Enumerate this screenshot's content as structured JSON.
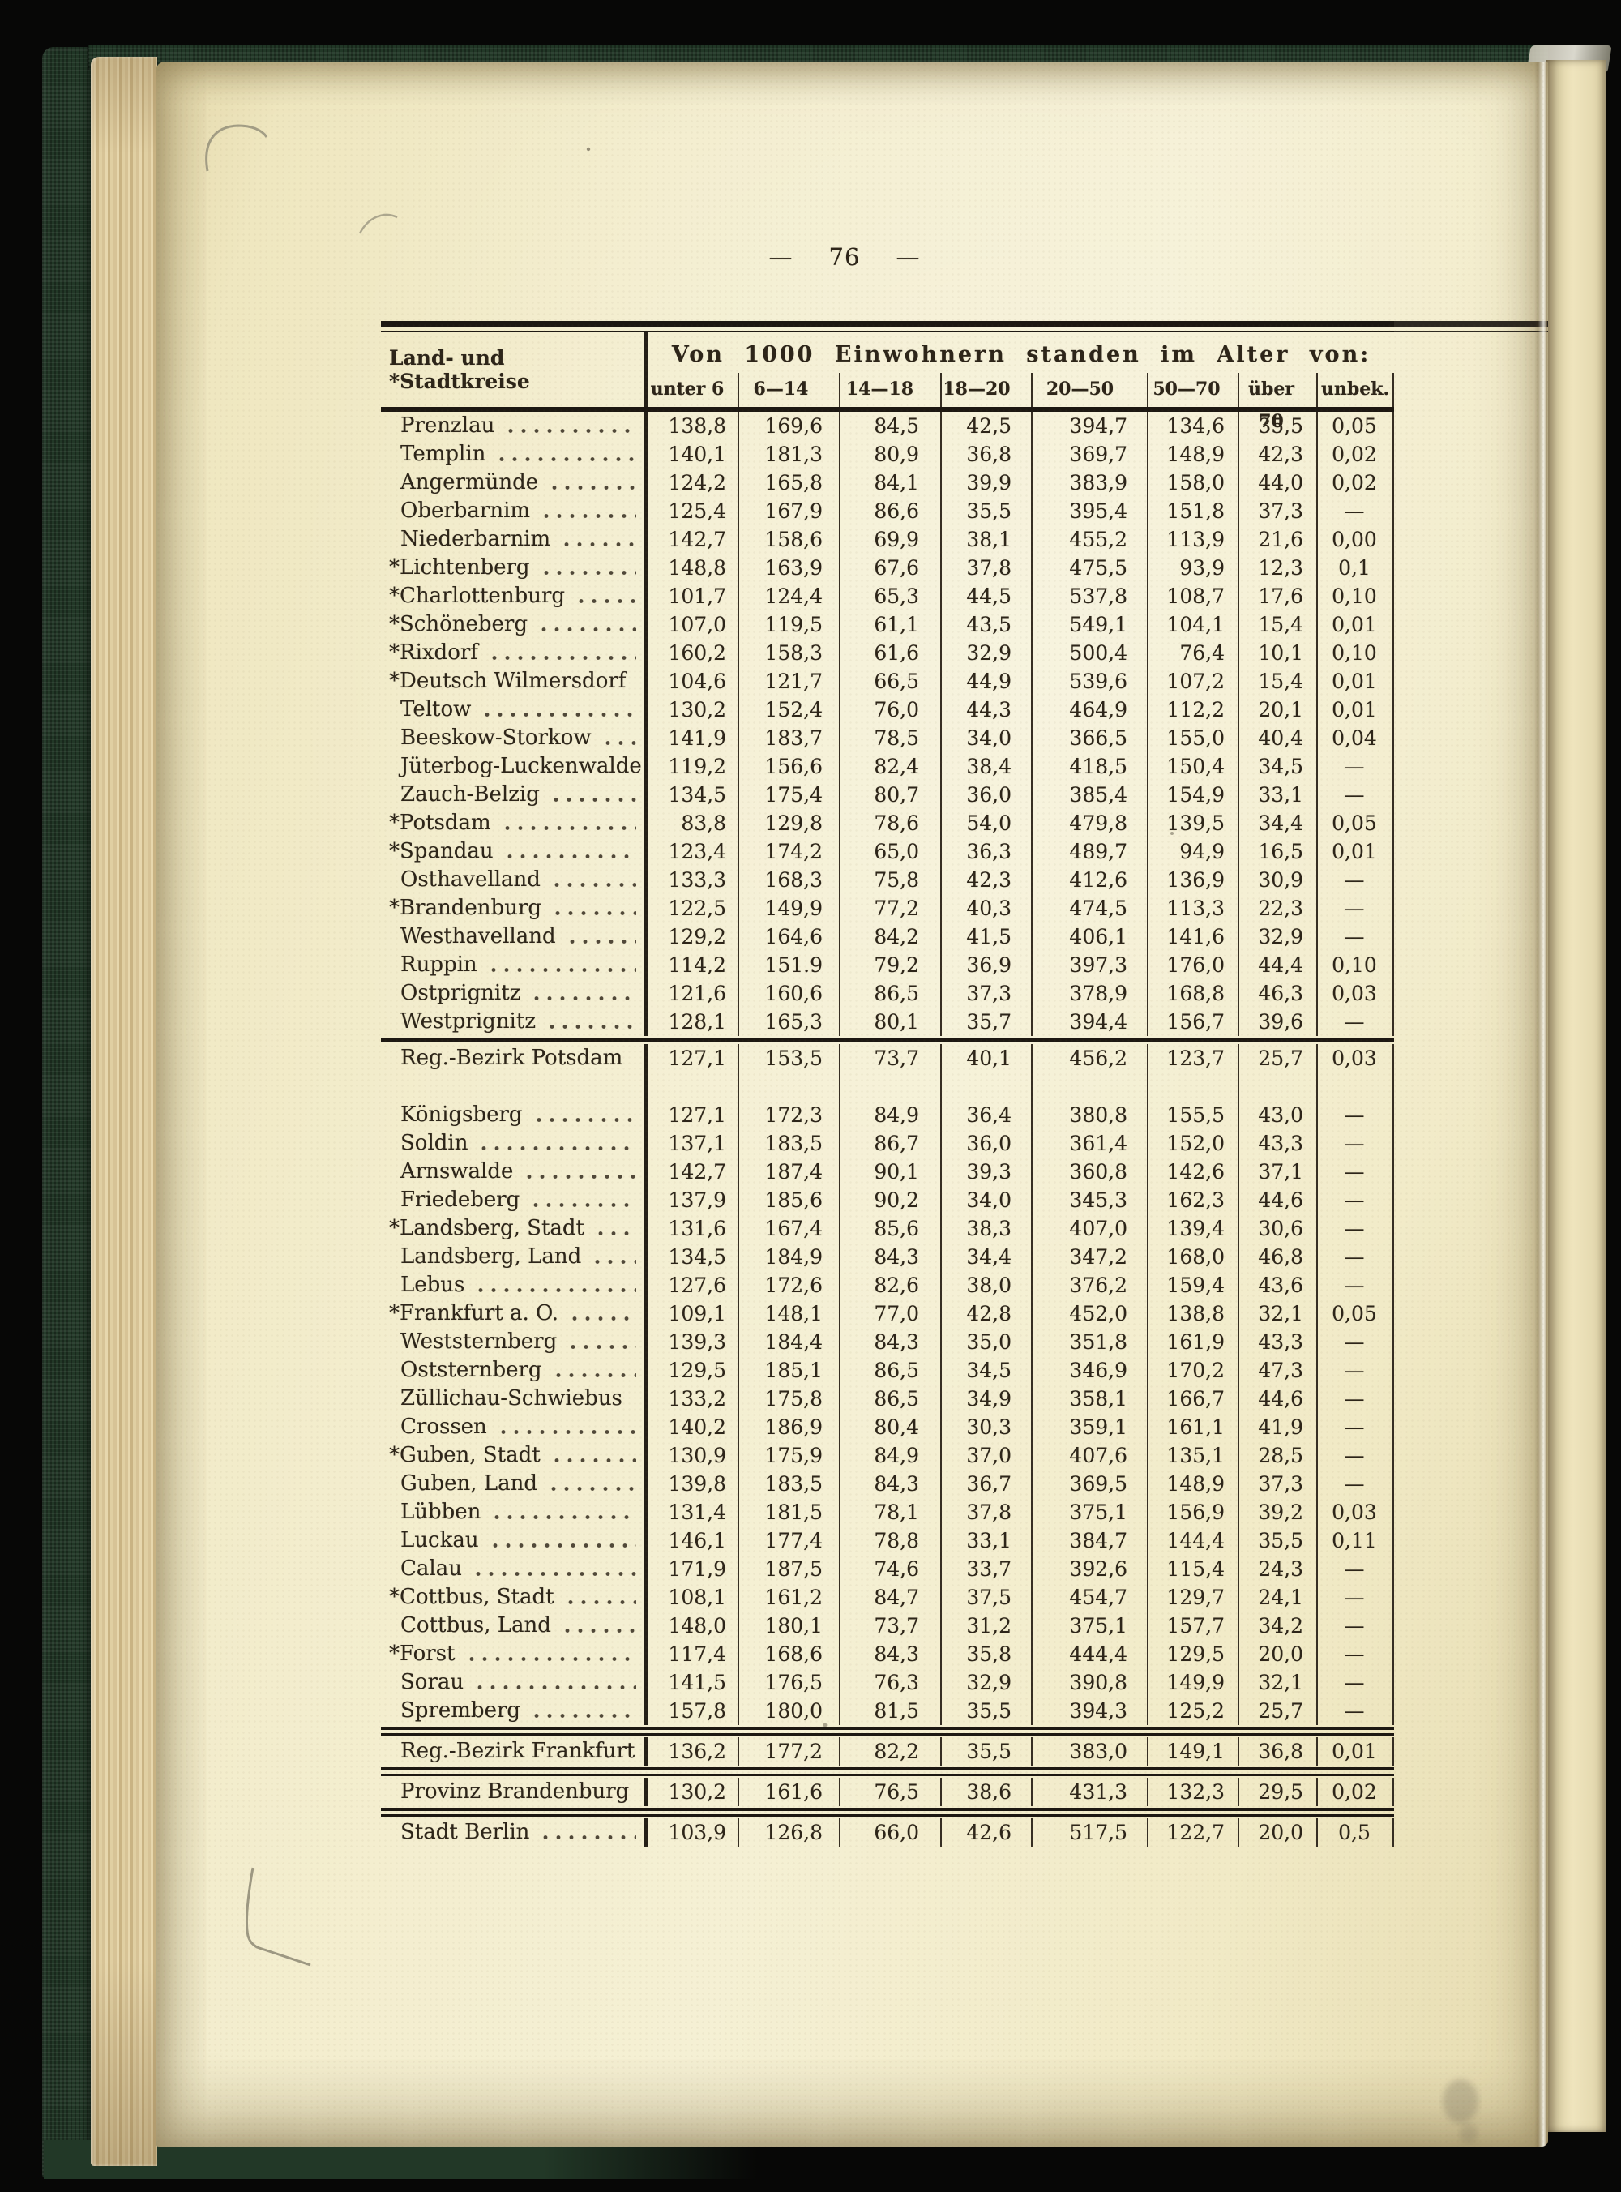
{
  "document": {
    "page_number": "76",
    "flanking_dash": "—"
  },
  "colors": {
    "paper": "#f2ebc8",
    "book_cover_green": "#223827",
    "background_black": "#070706",
    "ink": "#2d2519"
  },
  "table": {
    "name_column_header": "Land- und *Stadtkreise",
    "span_header": "Von 1000 Einwohnern standen im Alter von:",
    "age_columns": [
      "unter 6",
      "6—14",
      "14—18",
      "18—20",
      "20—50",
      "50—70",
      "über 70",
      "unbek."
    ],
    "rows": [
      {
        "name": "Prenzlau",
        "kind": "data",
        "values": [
          "138,8",
          "169,6",
          "84,5",
          "42,5",
          "394,7",
          "134,6",
          "35,5",
          "0,05"
        ]
      },
      {
        "name": "Templin",
        "kind": "data",
        "values": [
          "140,1",
          "181,3",
          "80,9",
          "36,8",
          "369,7",
          "148,9",
          "42,3",
          "0,02"
        ]
      },
      {
        "name": "Angermünde",
        "kind": "data",
        "values": [
          "124,2",
          "165,8",
          "84,1",
          "39,9",
          "383,9",
          "158,0",
          "44,0",
          "0,02"
        ]
      },
      {
        "name": "Oberbarnim",
        "kind": "data",
        "values": [
          "125,4",
          "167,9",
          "86,6",
          "35,5",
          "395,4",
          "151,8",
          "37,3",
          "—"
        ]
      },
      {
        "name": "Niederbarnim",
        "kind": "data",
        "values": [
          "142,7",
          "158,6",
          "69,9",
          "38,1",
          "455,2",
          "113,9",
          "21,6",
          "0,00"
        ]
      },
      {
        "name": "*Lichtenberg",
        "kind": "data",
        "values": [
          "148,8",
          "163,9",
          "67,6",
          "37,8",
          "475,5",
          "93,9",
          "12,3",
          "0,1"
        ]
      },
      {
        "name": "*Charlottenburg",
        "kind": "data",
        "values": [
          "101,7",
          "124,4",
          "65,3",
          "44,5",
          "537,8",
          "108,7",
          "17,6",
          "0,10"
        ]
      },
      {
        "name": "*Schöneberg",
        "kind": "data",
        "values": [
          "107,0",
          "119,5",
          "61,1",
          "43,5",
          "549,1",
          "104,1",
          "15,4",
          "0,01"
        ]
      },
      {
        "name": "*Rixdorf",
        "kind": "data",
        "values": [
          "160,2",
          "158,3",
          "61,6",
          "32,9",
          "500,4",
          "76,4",
          "10,1",
          "0,10"
        ]
      },
      {
        "name": "*Deutsch Wilmersdorf",
        "kind": "data",
        "values": [
          "104,6",
          "121,7",
          "66,5",
          "44,9",
          "539,6",
          "107,2",
          "15,4",
          "0,01"
        ]
      },
      {
        "name": "Teltow",
        "kind": "data",
        "values": [
          "130,2",
          "152,4",
          "76,0",
          "44,3",
          "464,9",
          "112,2",
          "20,1",
          "0,01"
        ]
      },
      {
        "name": "Beeskow-Storkow",
        "kind": "data",
        "values": [
          "141,9",
          "183,7",
          "78,5",
          "34,0",
          "366,5",
          "155,0",
          "40,4",
          "0,04"
        ]
      },
      {
        "name": "Jüterbog-Luckenwalde",
        "kind": "data",
        "values": [
          "119,2",
          "156,6",
          "82,4",
          "38,4",
          "418,5",
          "150,4",
          "34,5",
          "—"
        ]
      },
      {
        "name": "Zauch-Belzig",
        "kind": "data",
        "values": [
          "134,5",
          "175,4",
          "80,7",
          "36,0",
          "385,4",
          "154,9",
          "33,1",
          "—"
        ]
      },
      {
        "name": "*Potsdam",
        "kind": "data",
        "values": [
          "83,8",
          "129,8",
          "78,6",
          "54,0",
          "479,8",
          "139,5",
          "34,4",
          "0,05"
        ]
      },
      {
        "name": "*Spandau",
        "kind": "data",
        "values": [
          "123,4",
          "174,2",
          "65,0",
          "36,3",
          "489,7",
          "94,9",
          "16,5",
          "0,01"
        ]
      },
      {
        "name": "Osthavelland",
        "kind": "data",
        "values": [
          "133,3",
          "168,3",
          "75,8",
          "42,3",
          "412,6",
          "136,9",
          "30,9",
          "—"
        ]
      },
      {
        "name": "*Brandenburg",
        "kind": "data",
        "values": [
          "122,5",
          "149,9",
          "77,2",
          "40,3",
          "474,5",
          "113,3",
          "22,3",
          "—"
        ]
      },
      {
        "name": "Westhavelland",
        "kind": "data",
        "values": [
          "129,2",
          "164,6",
          "84,2",
          "41,5",
          "406,1",
          "141,6",
          "32,9",
          "—"
        ]
      },
      {
        "name": "Ruppin",
        "kind": "data",
        "values": [
          "114,2",
          "151.9",
          "79,2",
          "36,9",
          "397,3",
          "176,0",
          "44,4",
          "0,10"
        ]
      },
      {
        "name": "Ostprignitz",
        "kind": "data",
        "values": [
          "121,6",
          "160,6",
          "86,5",
          "37,3",
          "378,9",
          "168,8",
          "46,3",
          "0,03"
        ]
      },
      {
        "name": "Westprignitz",
        "kind": "data",
        "values": [
          "128,1",
          "165,3",
          "80,1",
          "35,7",
          "394,4",
          "156,7",
          "39,6",
          "—"
        ]
      },
      {
        "name": "Reg.-Bezirk Potsdam",
        "kind": "summary",
        "rule_before": "single",
        "values": [
          "127,1",
          "153,5",
          "73,7",
          "40,1",
          "456,2",
          "123,7",
          "25,7",
          "0,03"
        ]
      },
      {
        "name": "Königsberg",
        "kind": "data",
        "gap_before": true,
        "values": [
          "127,1",
          "172,3",
          "84,9",
          "36,4",
          "380,8",
          "155,5",
          "43,0",
          "—"
        ]
      },
      {
        "name": "Soldin",
        "kind": "data",
        "values": [
          "137,1",
          "183,5",
          "86,7",
          "36,0",
          "361,4",
          "152,0",
          "43,3",
          "—"
        ]
      },
      {
        "name": "Arnswalde",
        "kind": "data",
        "values": [
          "142,7",
          "187,4",
          "90,1",
          "39,3",
          "360,8",
          "142,6",
          "37,1",
          "—"
        ]
      },
      {
        "name": "Friedeberg",
        "kind": "data",
        "values": [
          "137,9",
          "185,6",
          "90,2",
          "34,0",
          "345,3",
          "162,3",
          "44,6",
          "—"
        ]
      },
      {
        "name": "*Landsberg, Stadt",
        "kind": "data",
        "values": [
          "131,6",
          "167,4",
          "85,6",
          "38,3",
          "407,0",
          "139,4",
          "30,6",
          "—"
        ]
      },
      {
        "name": "Landsberg, Land",
        "kind": "data",
        "values": [
          "134,5",
          "184,9",
          "84,3",
          "34,4",
          "347,2",
          "168,0",
          "46,8",
          "—"
        ]
      },
      {
        "name": "Lebus",
        "kind": "data",
        "values": [
          "127,6",
          "172,6",
          "82,6",
          "38,0",
          "376,2",
          "159,4",
          "43,6",
          "—"
        ]
      },
      {
        "name": "*Frankfurt a. O.",
        "kind": "data",
        "values": [
          "109,1",
          "148,1",
          "77,0",
          "42,8",
          "452,0",
          "138,8",
          "32,1",
          "0,05"
        ]
      },
      {
        "name": "Weststernberg",
        "kind": "data",
        "values": [
          "139,3",
          "184,4",
          "84,3",
          "35,0",
          "351,8",
          "161,9",
          "43,3",
          "—"
        ]
      },
      {
        "name": "Oststernberg",
        "kind": "data",
        "values": [
          "129,5",
          "185,1",
          "86,5",
          "34,5",
          "346,9",
          "170,2",
          "47,3",
          "—"
        ]
      },
      {
        "name": "Züllichau-Schwiebus",
        "kind": "data",
        "values": [
          "133,2",
          "175,8",
          "86,5",
          "34,9",
          "358,1",
          "166,7",
          "44,6",
          "—"
        ]
      },
      {
        "name": "Crossen",
        "kind": "data",
        "values": [
          "140,2",
          "186,9",
          "80,4",
          "30,3",
          "359,1",
          "161,1",
          "41,9",
          "—"
        ]
      },
      {
        "name": "*Guben, Stadt",
        "kind": "data",
        "values": [
          "130,9",
          "175,9",
          "84,9",
          "37,0",
          "407,6",
          "135,1",
          "28,5",
          "—"
        ]
      },
      {
        "name": "Guben, Land",
        "kind": "data",
        "values": [
          "139,8",
          "183,5",
          "84,3",
          "36,7",
          "369,5",
          "148,9",
          "37,3",
          "—"
        ]
      },
      {
        "name": "Lübben",
        "kind": "data",
        "values": [
          "131,4",
          "181,5",
          "78,1",
          "37,8",
          "375,1",
          "156,9",
          "39,2",
          "0,03"
        ]
      },
      {
        "name": "Luckau",
        "kind": "data",
        "values": [
          "146,1",
          "177,4",
          "78,8",
          "33,1",
          "384,7",
          "144,4",
          "35,5",
          "0,11"
        ]
      },
      {
        "name": "Calau",
        "kind": "data",
        "values": [
          "171,9",
          "187,5",
          "74,6",
          "33,7",
          "392,6",
          "115,4",
          "24,3",
          "—"
        ]
      },
      {
        "name": "*Cottbus, Stadt",
        "kind": "data",
        "values": [
          "108,1",
          "161,2",
          "84,7",
          "37,5",
          "454,7",
          "129,7",
          "24,1",
          "—"
        ]
      },
      {
        "name": "Cottbus, Land",
        "kind": "data",
        "values": [
          "148,0",
          "180,1",
          "73,7",
          "31,2",
          "375,1",
          "157,7",
          "34,2",
          "—"
        ]
      },
      {
        "name": "*Forst",
        "kind": "data",
        "values": [
          "117,4",
          "168,6",
          "84,3",
          "35,8",
          "444,4",
          "129,5",
          "20,0",
          "—"
        ]
      },
      {
        "name": "Sorau",
        "kind": "data",
        "values": [
          "141,5",
          "176,5",
          "76,3",
          "32,9",
          "390,8",
          "149,9",
          "32,1",
          "—"
        ]
      },
      {
        "name": "Spremberg",
        "kind": "data",
        "values": [
          "157,8",
          "180,0",
          "81,5",
          "35,5",
          "394,3",
          "125,2",
          "25,7",
          "—"
        ]
      },
      {
        "name": "Reg.-Bezirk Frankfurt",
        "kind": "summary",
        "rule_before": "double",
        "values": [
          "136,2",
          "177,2",
          "82,2",
          "35,5",
          "383,0",
          "149,1",
          "36,8",
          "0,01"
        ]
      },
      {
        "name": "Provinz Brandenburg",
        "kind": "summary",
        "rule_before": "double",
        "values": [
          "130,2",
          "161,6",
          "76,5",
          "38,6",
          "431,3",
          "132,3",
          "29,5",
          "0,02"
        ]
      },
      {
        "name": "Stadt Berlin",
        "kind": "summary",
        "rule_before": "double",
        "values": [
          "103,9",
          "126,8",
          "66,0",
          "42,6",
          "517,5",
          "122,7",
          "20,0",
          "0,5"
        ]
      }
    ]
  }
}
